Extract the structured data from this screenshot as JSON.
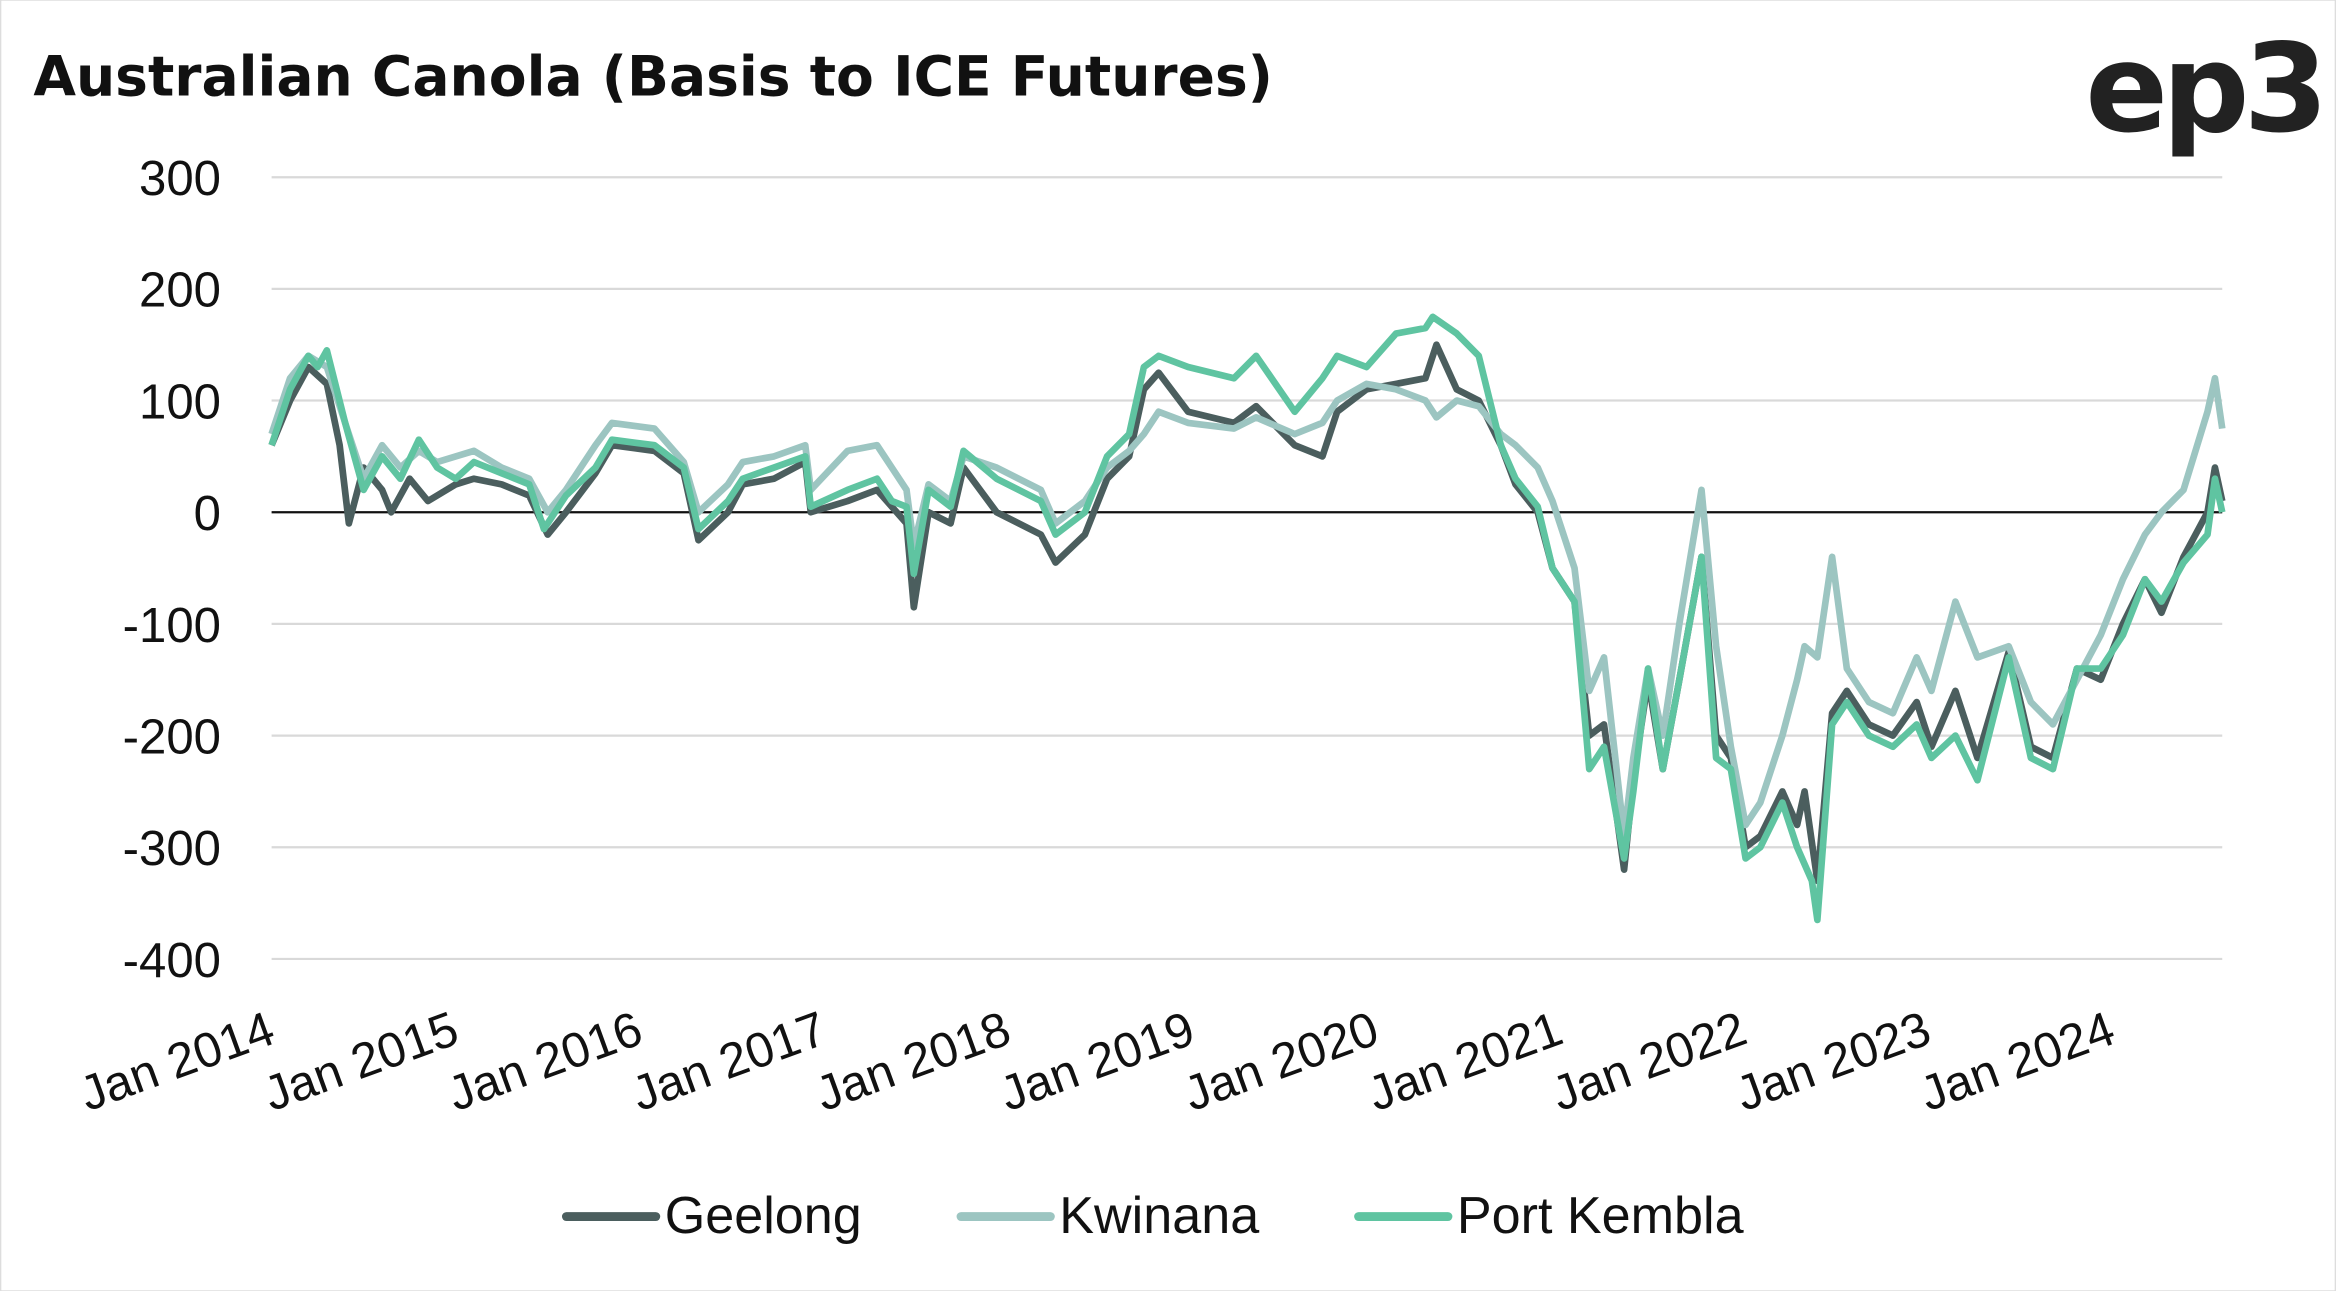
{
  "chart_data": {
    "type": "line",
    "title": "Australian Canola (Basis to ICE Futures)",
    "logo": "ep3",
    "xlabel": "",
    "ylabel": "",
    "ylim": [
      -400,
      300
    ],
    "yticks": [
      300,
      200,
      100,
      0,
      -100,
      -200,
      -300,
      -400
    ],
    "xlim": [
      2014,
      2024.6
    ],
    "xticks": [
      {
        "x": 2014,
        "label": "Jan 2014"
      },
      {
        "x": 2015,
        "label": "Jan 2015"
      },
      {
        "x": 2016,
        "label": "Jan 2016"
      },
      {
        "x": 2017,
        "label": "Jan 2017"
      },
      {
        "x": 2018,
        "label": "Jan 2018"
      },
      {
        "x": 2019,
        "label": "Jan 2019"
      },
      {
        "x": 2020,
        "label": "Jan 2020"
      },
      {
        "x": 2021,
        "label": "Jan 2021"
      },
      {
        "x": 2022,
        "label": "Jan 2022"
      },
      {
        "x": 2023,
        "label": "Jan 2023"
      },
      {
        "x": 2024,
        "label": "Jan 2024"
      }
    ],
    "grid": true,
    "legend_position": "bottom",
    "series": [
      {
        "name": "Geelong",
        "color": "#4b5e5e",
        "points": [
          [
            2014,
            60
          ],
          [
            2014.1,
            100
          ],
          [
            2014.2,
            130
          ],
          [
            2014.3,
            115
          ],
          [
            2014.37,
            60
          ],
          [
            2014.42,
            -10
          ],
          [
            2014.5,
            40
          ],
          [
            2014.6,
            20
          ],
          [
            2014.65,
            0
          ],
          [
            2014.75,
            30
          ],
          [
            2014.85,
            10
          ],
          [
            2015,
            25
          ],
          [
            2015.1,
            30
          ],
          [
            2015.25,
            25
          ],
          [
            2015.4,
            15
          ],
          [
            2015.5,
            -20
          ],
          [
            2015.6,
            0
          ],
          [
            2015.76,
            35
          ],
          [
            2015.85,
            60
          ],
          [
            2016.08,
            55
          ],
          [
            2016.24,
            35
          ],
          [
            2016.32,
            -25
          ],
          [
            2016.48,
            0
          ],
          [
            2016.56,
            25
          ],
          [
            2016.73,
            30
          ],
          [
            2016.9,
            45
          ],
          [
            2016.93,
            0
          ],
          [
            2017.13,
            10
          ],
          [
            2017.29,
            20
          ],
          [
            2017.37,
            5
          ],
          [
            2017.45,
            -10
          ],
          [
            2017.49,
            -85
          ],
          [
            2017.57,
            0
          ],
          [
            2017.69,
            -10
          ],
          [
            2017.76,
            40
          ],
          [
            2017.94,
            0
          ],
          [
            2018.18,
            -20
          ],
          [
            2018.26,
            -45
          ],
          [
            2018.42,
            -20
          ],
          [
            2018.54,
            30
          ],
          [
            2018.66,
            50
          ],
          [
            2018.74,
            110
          ],
          [
            2018.82,
            125
          ],
          [
            2018.98,
            90
          ],
          [
            2019.23,
            80
          ],
          [
            2019.35,
            95
          ],
          [
            2019.56,
            60
          ],
          [
            2019.71,
            50
          ],
          [
            2019.79,
            90
          ],
          [
            2019.95,
            110
          ],
          [
            2020.11,
            115
          ],
          [
            2020.27,
            120
          ],
          [
            2020.33,
            150
          ],
          [
            2020.44,
            110
          ],
          [
            2020.56,
            100
          ],
          [
            2020.68,
            60
          ],
          [
            2020.76,
            25
          ],
          [
            2020.88,
            0
          ],
          [
            2020.96,
            -50
          ],
          [
            2021.08,
            -80
          ],
          [
            2021.16,
            -200
          ],
          [
            2021.24,
            -190
          ],
          [
            2021.35,
            -320
          ],
          [
            2021.4,
            -240
          ],
          [
            2021.48,
            -150
          ],
          [
            2021.56,
            -230
          ],
          [
            2021.65,
            -150
          ],
          [
            2021.77,
            -40
          ],
          [
            2021.85,
            -200
          ],
          [
            2021.93,
            -220
          ],
          [
            2022.01,
            -300
          ],
          [
            2022.09,
            -290
          ],
          [
            2022.21,
            -250
          ],
          [
            2022.29,
            -280
          ],
          [
            2022.33,
            -250
          ],
          [
            2022.4,
            -330
          ],
          [
            2022.48,
            -180
          ],
          [
            2022.56,
            -160
          ],
          [
            2022.68,
            -190
          ],
          [
            2022.81,
            -200
          ],
          [
            2022.94,
            -170
          ],
          [
            2023.02,
            -210
          ],
          [
            2023.15,
            -160
          ],
          [
            2023.27,
            -220
          ],
          [
            2023.44,
            -125
          ],
          [
            2023.56,
            -210
          ],
          [
            2023.68,
            -220
          ],
          [
            2023.81,
            -140
          ],
          [
            2023.94,
            -150
          ],
          [
            2024.06,
            -100
          ],
          [
            2024.18,
            -60
          ],
          [
            2024.27,
            -90
          ],
          [
            2024.39,
            -40
          ],
          [
            2024.52,
            0
          ],
          [
            2024.56,
            40
          ],
          [
            2024.6,
            10
          ]
        ]
      },
      {
        "name": "Kwinana",
        "color": "#9cc5c1",
        "points": [
          [
            2014,
            70
          ],
          [
            2014.1,
            120
          ],
          [
            2014.2,
            140
          ],
          [
            2014.3,
            130
          ],
          [
            2014.4,
            80
          ],
          [
            2014.5,
            30
          ],
          [
            2014.6,
            60
          ],
          [
            2014.7,
            40
          ],
          [
            2014.8,
            55
          ],
          [
            2014.9,
            45
          ],
          [
            2015,
            50
          ],
          [
            2015.1,
            55
          ],
          [
            2015.25,
            40
          ],
          [
            2015.4,
            30
          ],
          [
            2015.5,
            0
          ],
          [
            2015.6,
            20
          ],
          [
            2015.76,
            60
          ],
          [
            2015.85,
            80
          ],
          [
            2016.08,
            75
          ],
          [
            2016.24,
            45
          ],
          [
            2016.32,
            0
          ],
          [
            2016.48,
            25
          ],
          [
            2016.56,
            45
          ],
          [
            2016.73,
            50
          ],
          [
            2016.9,
            60
          ],
          [
            2016.93,
            20
          ],
          [
            2017.13,
            55
          ],
          [
            2017.29,
            60
          ],
          [
            2017.37,
            40
          ],
          [
            2017.45,
            20
          ],
          [
            2017.49,
            -30
          ],
          [
            2017.57,
            25
          ],
          [
            2017.69,
            10
          ],
          [
            2017.76,
            50
          ],
          [
            2017.94,
            40
          ],
          [
            2018.18,
            20
          ],
          [
            2018.26,
            -10
          ],
          [
            2018.42,
            10
          ],
          [
            2018.54,
            40
          ],
          [
            2018.66,
            55
          ],
          [
            2018.74,
            70
          ],
          [
            2018.82,
            90
          ],
          [
            2018.98,
            80
          ],
          [
            2019.23,
            75
          ],
          [
            2019.35,
            85
          ],
          [
            2019.56,
            70
          ],
          [
            2019.71,
            80
          ],
          [
            2019.79,
            100
          ],
          [
            2019.95,
            115
          ],
          [
            2020.11,
            110
          ],
          [
            2020.27,
            100
          ],
          [
            2020.33,
            85
          ],
          [
            2020.44,
            100
          ],
          [
            2020.56,
            95
          ],
          [
            2020.68,
            70
          ],
          [
            2020.76,
            60
          ],
          [
            2020.88,
            40
          ],
          [
            2020.96,
            10
          ],
          [
            2021.08,
            -50
          ],
          [
            2021.16,
            -160
          ],
          [
            2021.24,
            -130
          ],
          [
            2021.35,
            -290
          ],
          [
            2021.4,
            -220
          ],
          [
            2021.48,
            -140
          ],
          [
            2021.56,
            -200
          ],
          [
            2021.65,
            -100
          ],
          [
            2021.77,
            20
          ],
          [
            2021.85,
            -120
          ],
          [
            2021.93,
            -210
          ],
          [
            2022.01,
            -280
          ],
          [
            2022.09,
            -260
          ],
          [
            2022.21,
            -200
          ],
          [
            2022.29,
            -150
          ],
          [
            2022.33,
            -120
          ],
          [
            2022.4,
            -130
          ],
          [
            2022.48,
            -40
          ],
          [
            2022.56,
            -140
          ],
          [
            2022.68,
            -170
          ],
          [
            2022.81,
            -180
          ],
          [
            2022.94,
            -130
          ],
          [
            2023.02,
            -160
          ],
          [
            2023.15,
            -80
          ],
          [
            2023.27,
            -130
          ],
          [
            2023.44,
            -120
          ],
          [
            2023.56,
            -170
          ],
          [
            2023.68,
            -190
          ],
          [
            2023.81,
            -150
          ],
          [
            2023.94,
            -110
          ],
          [
            2024.06,
            -60
          ],
          [
            2024.18,
            -20
          ],
          [
            2024.27,
            0
          ],
          [
            2024.39,
            20
          ],
          [
            2024.52,
            90
          ],
          [
            2024.56,
            120
          ],
          [
            2024.6,
            75
          ]
        ]
      },
      {
        "name": "Port Kembla",
        "color": "#5fc4a1",
        "points": [
          [
            2014,
            60
          ],
          [
            2014.1,
            110
          ],
          [
            2014.2,
            140
          ],
          [
            2014.25,
            130
          ],
          [
            2014.3,
            145
          ],
          [
            2014.4,
            80
          ],
          [
            2014.5,
            20
          ],
          [
            2014.6,
            50
          ],
          [
            2014.7,
            30
          ],
          [
            2014.8,
            65
          ],
          [
            2014.9,
            40
          ],
          [
            2015,
            30
          ],
          [
            2015.1,
            45
          ],
          [
            2015.25,
            35
          ],
          [
            2015.4,
            25
          ],
          [
            2015.48,
            -15
          ],
          [
            2015.6,
            15
          ],
          [
            2015.76,
            40
          ],
          [
            2015.85,
            65
          ],
          [
            2016.08,
            60
          ],
          [
            2016.24,
            40
          ],
          [
            2016.32,
            -15
          ],
          [
            2016.48,
            10
          ],
          [
            2016.56,
            30
          ],
          [
            2016.73,
            40
          ],
          [
            2016.9,
            50
          ],
          [
            2016.93,
            5
          ],
          [
            2017.13,
            20
          ],
          [
            2017.29,
            30
          ],
          [
            2017.37,
            10
          ],
          [
            2017.45,
            5
          ],
          [
            2017.49,
            -55
          ],
          [
            2017.57,
            20
          ],
          [
            2017.69,
            5
          ],
          [
            2017.76,
            55
          ],
          [
            2017.94,
            30
          ],
          [
            2018.18,
            10
          ],
          [
            2018.26,
            -20
          ],
          [
            2018.42,
            0
          ],
          [
            2018.54,
            50
          ],
          [
            2018.66,
            70
          ],
          [
            2018.74,
            130
          ],
          [
            2018.82,
            140
          ],
          [
            2018.98,
            130
          ],
          [
            2019.23,
            120
          ],
          [
            2019.35,
            140
          ],
          [
            2019.56,
            90
          ],
          [
            2019.71,
            120
          ],
          [
            2019.79,
            140
          ],
          [
            2019.95,
            130
          ],
          [
            2020.11,
            160
          ],
          [
            2020.27,
            165
          ],
          [
            2020.31,
            175
          ],
          [
            2020.44,
            160
          ],
          [
            2020.56,
            140
          ],
          [
            2020.68,
            60
          ],
          [
            2020.76,
            30
          ],
          [
            2020.88,
            5
          ],
          [
            2020.96,
            -50
          ],
          [
            2021.08,
            -80
          ],
          [
            2021.16,
            -230
          ],
          [
            2021.24,
            -210
          ],
          [
            2021.35,
            -310
          ],
          [
            2021.4,
            -250
          ],
          [
            2021.48,
            -140
          ],
          [
            2021.56,
            -230
          ],
          [
            2021.65,
            -150
          ],
          [
            2021.77,
            -40
          ],
          [
            2021.85,
            -220
          ],
          [
            2021.93,
            -230
          ],
          [
            2022.01,
            -310
          ],
          [
            2022.09,
            -300
          ],
          [
            2022.21,
            -260
          ],
          [
            2022.29,
            -300
          ],
          [
            2022.37,
            -330
          ],
          [
            2022.4,
            -365
          ],
          [
            2022.48,
            -190
          ],
          [
            2022.56,
            -170
          ],
          [
            2022.68,
            -200
          ],
          [
            2022.81,
            -210
          ],
          [
            2022.94,
            -190
          ],
          [
            2023.02,
            -220
          ],
          [
            2023.15,
            -200
          ],
          [
            2023.27,
            -240
          ],
          [
            2023.44,
            -130
          ],
          [
            2023.56,
            -220
          ],
          [
            2023.68,
            -230
          ],
          [
            2023.81,
            -140
          ],
          [
            2023.94,
            -140
          ],
          [
            2024.06,
            -110
          ],
          [
            2024.18,
            -60
          ],
          [
            2024.27,
            -80
          ],
          [
            2024.39,
            -45
          ],
          [
            2024.52,
            -20
          ],
          [
            2024.56,
            30
          ],
          [
            2024.6,
            0
          ]
        ]
      }
    ]
  }
}
